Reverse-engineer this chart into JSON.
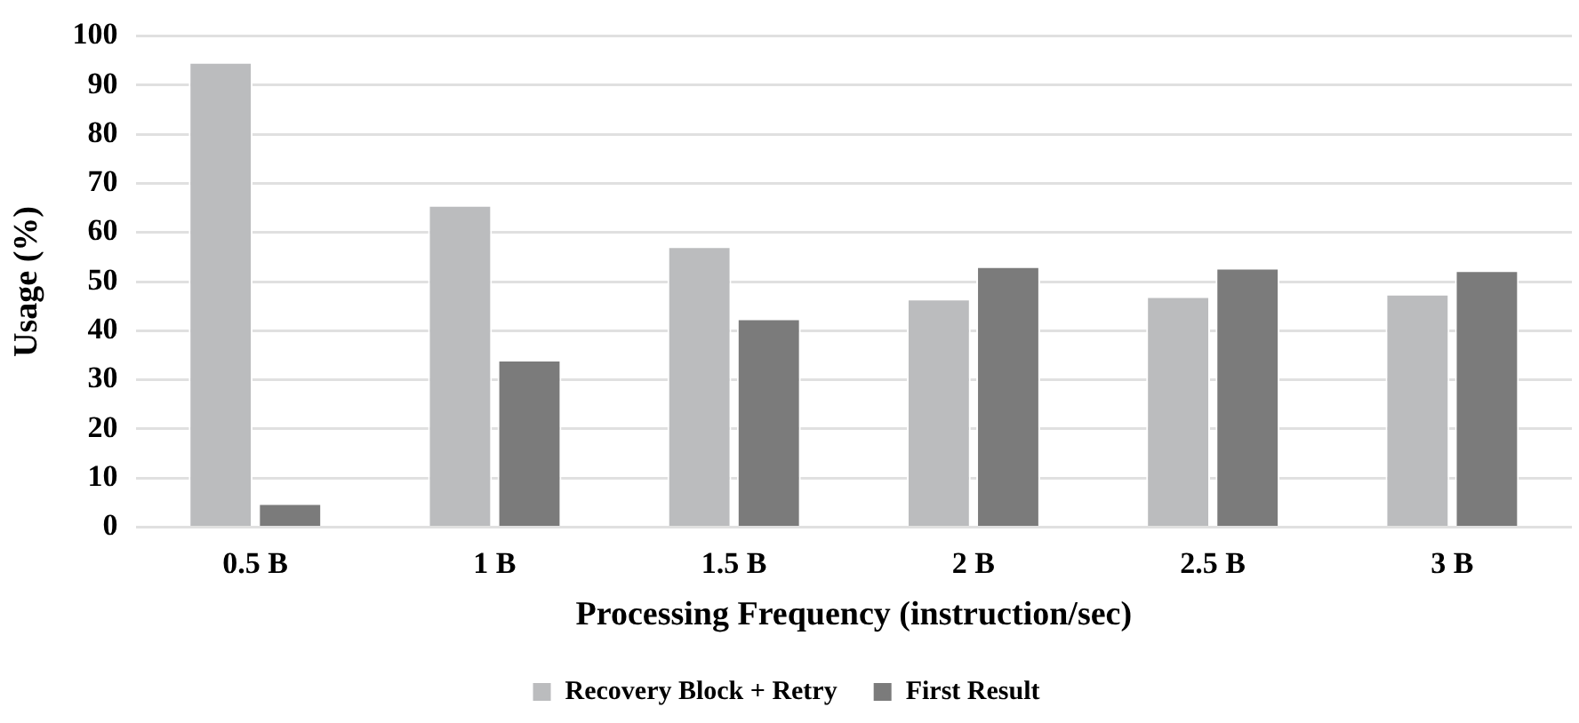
{
  "chart_data": {
    "type": "bar",
    "xlabel": "Processing Frequency (instruction/sec)",
    "ylabel": "Usage (%)",
    "categories": [
      "0.5 B",
      "1 B",
      "1.5 B",
      "2 B",
      "2.5 B",
      "3 B"
    ],
    "series": [
      {
        "name": "Recovery Block + Retry",
        "color": "#bbbcbe",
        "values": [
          94.7,
          65.6,
          57.2,
          46.5,
          47.0,
          47.5
        ]
      },
      {
        "name": "First Result",
        "color": "#7b7b7b",
        "values": [
          4.9,
          34.1,
          42.5,
          53.1,
          52.8,
          52.3
        ]
      }
    ],
    "ylim": [
      0,
      100
    ],
    "yticks": [
      0,
      10,
      20,
      30,
      40,
      50,
      60,
      70,
      80,
      90,
      100
    ],
    "grid": "y",
    "legend": "bottom"
  }
}
